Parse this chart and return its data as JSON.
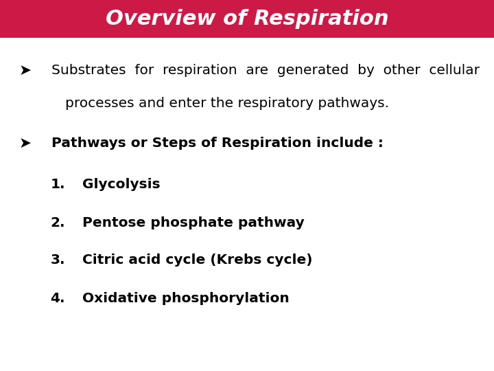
{
  "title": "Overview of Respiration",
  "title_bg_color": "#CC1A47",
  "title_text_color": "#FFFFFF",
  "title_fontsize": 22,
  "body_bg_color": "#FFFFFF",
  "body_text_color": "#000000",
  "bullet_symbol": "➤",
  "bullet1_line1": "Substrates  for  respiration  are  generated  by  other  cellular",
  "bullet1_line2": "processes and enter the respiratory pathways.",
  "bullet2": "Pathways or Steps of Respiration include :",
  "item1": "Glycolysis",
  "item2": "Pentose phosphate pathway",
  "item3": "Citric acid cycle (Krebs cycle)",
  "item4": "Oxidative phosphorylation",
  "text_fontsize": 14.5,
  "bold_fontsize": 14.5,
  "item_fontsize": 14.5
}
